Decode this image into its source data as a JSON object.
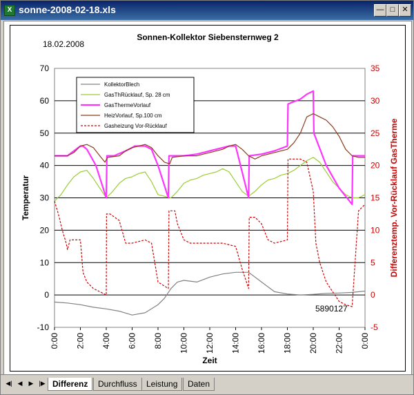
{
  "window": {
    "title": "sonne-2008-02-18.xls",
    "app_icon": "excel-icon"
  },
  "sheet_tabs": [
    {
      "label": "Differenz",
      "active": true
    },
    {
      "label": "Durchfluss",
      "active": false
    },
    {
      "label": "Leistung",
      "active": false
    },
    {
      "label": "Daten",
      "active": false
    }
  ],
  "chart_data": {
    "type": "line",
    "title": "Sonnen-Kollektor Siebensternweg 2",
    "date_label": "18.02.2008",
    "annotation": "5890127",
    "xlabel": "Zeit",
    "ylabel": "Temperatur",
    "y2label": "Differenztemp. Vor-Rücklauf GasTherme",
    "xlim": [
      0,
      24
    ],
    "ylim": [
      -10,
      70
    ],
    "y2lim": [
      -5,
      35
    ],
    "x_ticks": [
      "0:00",
      "2:00",
      "4:00",
      "6:00",
      "8:00",
      "10:00",
      "12:00",
      "14:00",
      "16:00",
      "18:00",
      "20:00",
      "22:00",
      "0:00"
    ],
    "y_ticks": [
      -10,
      0,
      10,
      20,
      30,
      40,
      50,
      60,
      70
    ],
    "y2_ticks": [
      -5,
      0,
      5,
      10,
      15,
      20,
      25,
      30,
      35
    ],
    "legend_position": "top-left",
    "series": [
      {
        "name": "KollektorBlech",
        "color": "#808080",
        "axis": "left",
        "x": [
          0,
          1,
          2,
          3,
          4,
          5,
          6,
          7,
          8,
          8.5,
          9,
          9.5,
          10,
          11,
          12,
          13,
          14,
          14.5,
          15,
          16,
          17,
          18,
          19,
          20,
          21,
          22,
          23,
          24
        ],
        "y": [
          -2.2,
          -2.5,
          -3,
          -3.8,
          -4.3,
          -5,
          -6.2,
          -5.5,
          -3,
          -1,
          2,
          4,
          4.5,
          4,
          5.5,
          6.5,
          7,
          7,
          7,
          4,
          1,
          0.3,
          0,
          0.2,
          0.5,
          0.6,
          0.8,
          1.2
        ]
      },
      {
        "name": "GasThRücklauf, Sp. 28 cm",
        "color": "#9acd32",
        "axis": "left",
        "x": [
          0,
          0.5,
          1,
          1.5,
          2,
          2.5,
          3,
          3.5,
          4,
          4.5,
          5,
          5.5,
          6,
          6.5,
          7,
          7.5,
          8,
          8.5,
          9,
          9.5,
          10,
          10.5,
          11,
          11.5,
          12,
          12.5,
          13,
          13.5,
          14,
          14.5,
          15,
          15.5,
          16,
          16.5,
          17,
          17.5,
          18,
          18.5,
          19,
          19.5,
          20,
          20.5,
          21,
          21.5,
          22,
          22.5,
          23,
          23.5,
          24
        ],
        "y": [
          29,
          31,
          34,
          36.5,
          38,
          38.5,
          36,
          33,
          30,
          32,
          34.5,
          36,
          36.5,
          37.5,
          38,
          35,
          31,
          30.5,
          30,
          32,
          34.5,
          35.5,
          36,
          37,
          37.5,
          38,
          39,
          38,
          35,
          32,
          30.5,
          32,
          34,
          35.5,
          36,
          37,
          37.5,
          38.5,
          40,
          41.5,
          42.5,
          41,
          38,
          35,
          33,
          31,
          30,
          30,
          31
        ]
      },
      {
        "name": "GasThermeVorlauf",
        "color": "#ff33ff",
        "axis": "left",
        "x": [
          0,
          1,
          1.5,
          2,
          2.2,
          2.5,
          3.2,
          4,
          4.05,
          4.6,
          5.5,
          6,
          6.2,
          7,
          7.5,
          8,
          8.8,
          8.85,
          9.5,
          10,
          11,
          11.5,
          12,
          13,
          13.5,
          14,
          15,
          15.05,
          16,
          17,
          18,
          18.05,
          19,
          19.5,
          20,
          20.05,
          21,
          22,
          23,
          23.05,
          24
        ],
        "y": [
          43,
          43,
          44.5,
          46,
          46,
          45,
          40,
          30,
          43,
          43,
          44.5,
          45.5,
          46,
          46,
          45,
          40,
          30,
          43,
          43,
          43,
          43.5,
          44,
          44.5,
          45.5,
          46,
          46,
          30,
          43,
          43.5,
          44.5,
          46,
          59,
          60.5,
          62,
          63,
          50,
          40,
          33,
          28,
          43,
          43
        ]
      },
      {
        "name": "HeizVorlauf, Sp.100 cm",
        "color": "#8b3a1a",
        "axis": "left",
        "x": [
          0,
          1,
          1.5,
          2,
          2.5,
          3,
          3.5,
          3.9,
          4.1,
          5,
          5.5,
          6,
          6.5,
          7,
          7.5,
          8,
          8.5,
          8.9,
          9.1,
          10,
          11,
          11.5,
          12,
          13,
          13.5,
          14,
          14.5,
          15,
          15.5,
          16,
          17,
          18,
          18.5,
          19,
          19.5,
          20,
          20.5,
          21,
          21.5,
          22,
          22.5,
          23,
          23.5,
          24
        ],
        "y": [
          43,
          43,
          44,
          46,
          46.5,
          45.5,
          43,
          41,
          42.5,
          43,
          44.5,
          45.5,
          46,
          46.5,
          45.5,
          43,
          41,
          40.5,
          42.5,
          43,
          43,
          43.5,
          44,
          45,
          46,
          46.5,
          45,
          43,
          42,
          43,
          44,
          45,
          47,
          50,
          55,
          56,
          55,
          54,
          52,
          49,
          45,
          43,
          42.5,
          42.5
        ]
      },
      {
        "name": "Gasheizung Vor-Rücklauf",
        "color": "#cc0000",
        "axis": "right",
        "dashed": true,
        "x": [
          0,
          0.3,
          0.6,
          0.9,
          1,
          1.2,
          2,
          2.2,
          2.5,
          3,
          3.5,
          4,
          4.02,
          4.3,
          5,
          5.5,
          6,
          7,
          7.5,
          8,
          8.8,
          8.85,
          9.3,
          9.5,
          10,
          10.5,
          11,
          12,
          13,
          14,
          14.5,
          15,
          15.05,
          15.5,
          16,
          16.5,
          17,
          18,
          18.05,
          19,
          19.5,
          20,
          20.2,
          20.5,
          21,
          21.5,
          22,
          22.5,
          23,
          23.5,
          24
        ],
        "y": [
          14.5,
          12.5,
          10,
          8,
          7,
          8.5,
          8.5,
          3.5,
          2,
          1,
          0.5,
          0,
          12.5,
          12.5,
          11.5,
          8,
          8,
          8.5,
          8,
          2,
          1,
          13,
          13,
          11,
          8.5,
          8,
          8,
          8,
          8,
          7.5,
          4,
          1,
          12,
          12,
          11,
          8.5,
          8,
          8.5,
          21,
          21,
          20.5,
          16,
          8,
          5,
          2,
          0.5,
          -1,
          -1.5,
          -1.8,
          13,
          14
        ]
      }
    ]
  }
}
